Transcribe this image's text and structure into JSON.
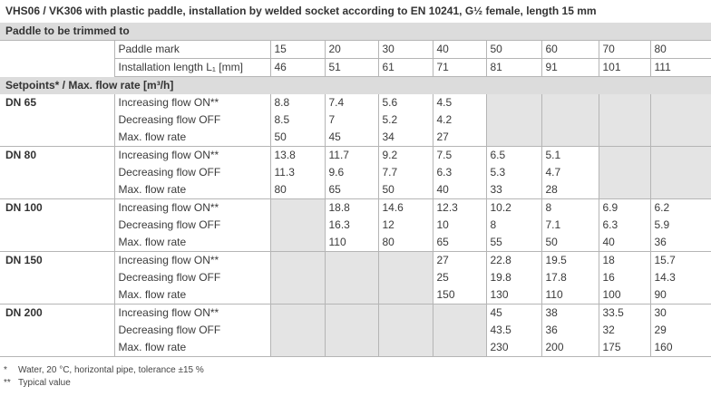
{
  "title": "VHS06 / VK306 with plastic paddle, installation by welded socket according to EN 10241, G½ female, length 15 mm",
  "section1": "Paddle to be trimmed to",
  "paddle_mark_label": "Paddle mark",
  "install_len_label": "Installation length L₁ [mm]",
  "paddle_marks": [
    "15",
    "20",
    "30",
    "40",
    "50",
    "60",
    "70",
    "80"
  ],
  "install_lengths": [
    "46",
    "51",
    "61",
    "71",
    "81",
    "91",
    "101",
    "111"
  ],
  "section2": "Setpoints* / Max. flow rate [m³/h]",
  "row_labels": [
    "Increasing flow ON**",
    "Decreasing flow OFF",
    "Max. flow rate"
  ],
  "groups": [
    {
      "name": "DN 65",
      "rows": [
        [
          "8.8",
          "7.4",
          "5.6",
          "4.5",
          "",
          "",
          "",
          ""
        ],
        [
          "8.5",
          "7",
          "5.2",
          "4.2",
          "",
          "",
          "",
          ""
        ],
        [
          "50",
          "45",
          "34",
          "27",
          "",
          "",
          "",
          ""
        ]
      ]
    },
    {
      "name": "DN 80",
      "rows": [
        [
          "13.8",
          "11.7",
          "9.2",
          "7.5",
          "6.5",
          "5.1",
          "",
          ""
        ],
        [
          "11.3",
          "9.6",
          "7.7",
          "6.3",
          "5.3",
          "4.7",
          "",
          ""
        ],
        [
          "80",
          "65",
          "50",
          "40",
          "33",
          "28",
          "",
          ""
        ]
      ]
    },
    {
      "name": "DN 100",
      "rows": [
        [
          "",
          "18.8",
          "14.6",
          "12.3",
          "10.2",
          "8",
          "6.9",
          "6.2"
        ],
        [
          "",
          "16.3",
          "12",
          "10",
          "8",
          "7.1",
          "6.3",
          "5.9"
        ],
        [
          "",
          "110",
          "80",
          "65",
          "55",
          "50",
          "40",
          "36"
        ]
      ]
    },
    {
      "name": "DN 150",
      "rows": [
        [
          "",
          "",
          "",
          "27",
          "22.8",
          "19.5",
          "18",
          "15.7"
        ],
        [
          "",
          "",
          "",
          "25",
          "19.8",
          "17.8",
          "16",
          "14.3"
        ],
        [
          "",
          "",
          "",
          "150",
          "130",
          "110",
          "100",
          "90"
        ]
      ]
    },
    {
      "name": "DN 200",
      "rows": [
        [
          "",
          "",
          "",
          "",
          "45",
          "38",
          "33.5",
          "30"
        ],
        [
          "",
          "",
          "",
          "",
          "43.5",
          "36",
          "32",
          "29"
        ],
        [
          "",
          "",
          "",
          "",
          "230",
          "200",
          "175",
          "160"
        ]
      ]
    }
  ],
  "footnotes": [
    {
      "mark": "*",
      "text": "Water, 20 °C, horizontal pipe, tolerance ±15 %"
    },
    {
      "mark": "**",
      "text": "Typical value"
    }
  ]
}
